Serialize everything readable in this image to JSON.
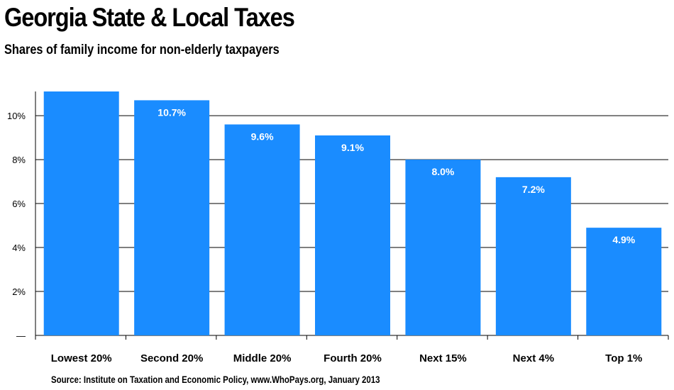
{
  "title": "Georgia State & Local Taxes",
  "subtitle": "Shares of family income for non-elderly taxpayers",
  "source": "Source: Institute on Taxation and Economic Policy, www.WhoPays.org, January 2013",
  "colors": {
    "bar": "#1a8cff",
    "grid": "#000000"
  },
  "chart_data": {
    "type": "bar",
    "categories": [
      "Lowest 20%",
      "Second 20%",
      "Middle 20%",
      "Fourth 20%",
      "Next 15%",
      "Next 4%",
      "Top 1%"
    ],
    "values": [
      11.1,
      10.7,
      9.6,
      9.1,
      8.0,
      7.2,
      4.9
    ],
    "data_labels": [
      "",
      "10.7%",
      "9.6%",
      "9.1%",
      "8.0%",
      "7.2%",
      "4.9%"
    ],
    "y_ticks": [
      0,
      2,
      4,
      6,
      8,
      10
    ],
    "y_tick_labels": [
      "—",
      "2%",
      "4%",
      "6%",
      "8%",
      "10%"
    ],
    "ylim": [
      0,
      11.1
    ],
    "grid": true
  }
}
